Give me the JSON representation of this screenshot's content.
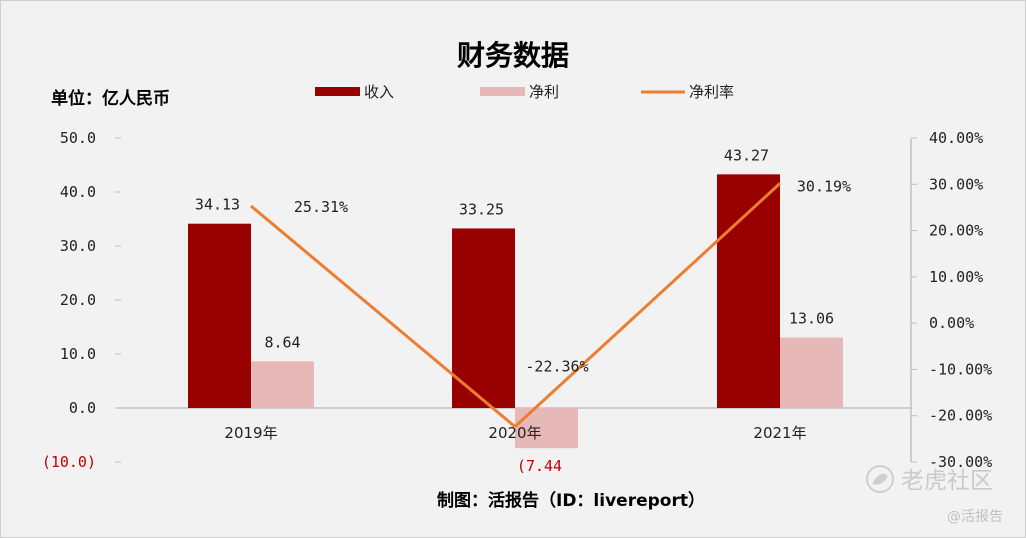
{
  "chart_data": {
    "type": "bar",
    "title": "财务数据",
    "unit_label": "单位：亿人民币",
    "categories": [
      "2019年",
      "2020年",
      "2021年"
    ],
    "series": [
      {
        "name": "收入",
        "kind": "bar",
        "axis": "left",
        "color": "#990000",
        "values": [
          34.13,
          33.25,
          43.27
        ],
        "labels": [
          "34.13",
          "33.25",
          "43.27"
        ]
      },
      {
        "name": "净利",
        "kind": "bar",
        "axis": "left",
        "color": "#e6b8b7",
        "values": [
          8.64,
          -7.44,
          13.06
        ],
        "labels": [
          "8.64",
          "(7.44",
          "13.06"
        ]
      },
      {
        "name": "净利率",
        "kind": "line",
        "axis": "right",
        "color": "#ed7d31",
        "values": [
          25.31,
          -22.36,
          30.19
        ],
        "labels": [
          "25.31%",
          "-22.36%",
          "30.19%"
        ]
      }
    ],
    "left_axis": {
      "range": [
        -10,
        50
      ],
      "step": 10,
      "ticks": [
        "(10.0)",
        "0.0",
        "10.0",
        "20.0",
        "30.0",
        "40.0",
        "50.0"
      ]
    },
    "right_axis": {
      "range": [
        -30,
        40
      ],
      "step": 10,
      "ticks": [
        "-30.00%",
        "-20.00%",
        "-10.00%",
        "0.00%",
        "10.00%",
        "20.00%",
        "30.00%",
        "40.00%"
      ]
    },
    "legend_position": "top-center",
    "footer": "制图：活报告（ID：livereport）"
  },
  "watermark": {
    "brand": "老虎社区",
    "handle": "@活报告"
  },
  "colors": {
    "negative_label": "#c00000",
    "axis": "#bfbfbf",
    "text": "#222222"
  }
}
